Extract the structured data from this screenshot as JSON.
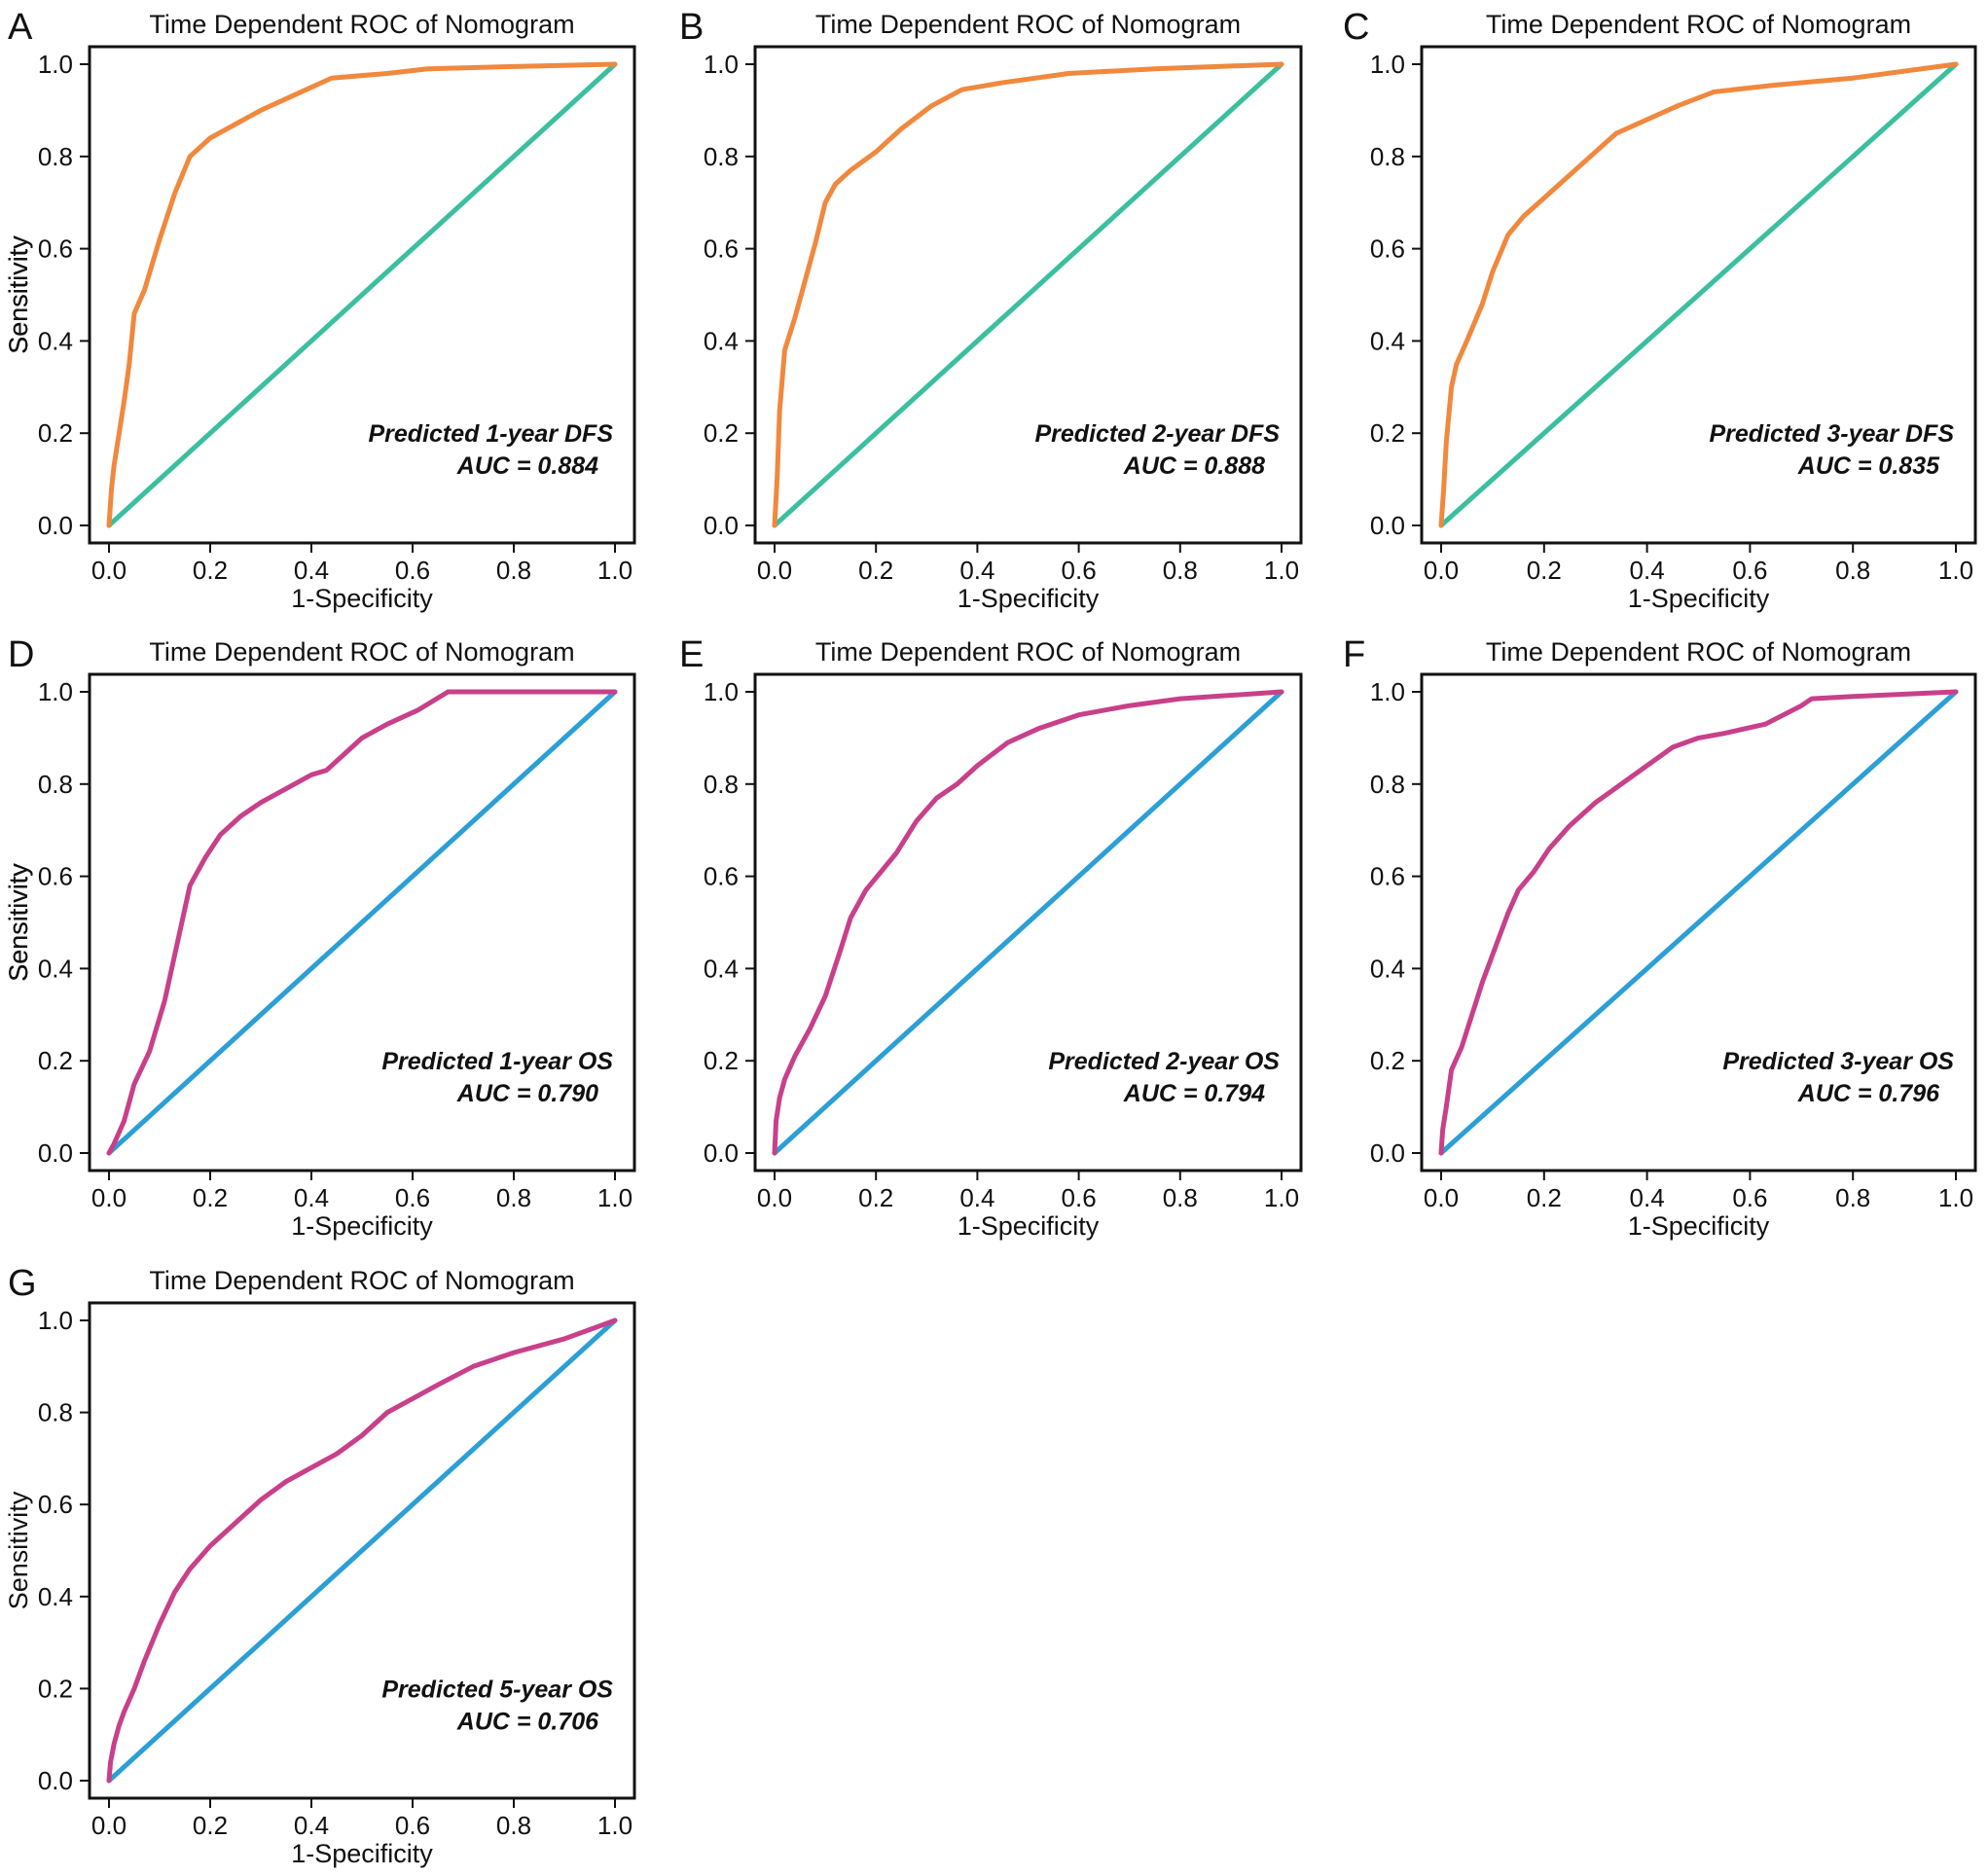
{
  "chart_data": [
    {
      "panel": "A",
      "type": "line",
      "title": "Time Dependent ROC of Nomogram",
      "xlabel": "1-Specificity",
      "ylabel": "Sensitivity",
      "xlim": [
        0,
        1
      ],
      "ylim": [
        0,
        1
      ],
      "xticks": [
        "0.0",
        "0.2",
        "0.4",
        "0.6",
        "0.8",
        "1.0"
      ],
      "yticks": [
        "0.0",
        "0.2",
        "0.4",
        "0.6",
        "0.8",
        "1.0"
      ],
      "annotation": [
        "Predicted 1-year DFS",
        "AUC = 0.884"
      ],
      "colors": {
        "roc": "#f0883e",
        "ref": "#3bbf9f"
      },
      "series": [
        {
          "x": [
            0,
            0.005,
            0.01,
            0.02,
            0.03,
            0.04,
            0.05,
            0.07,
            0.1,
            0.13,
            0.16,
            0.2,
            0.25,
            0.3,
            0.38,
            0.44,
            0.55,
            0.63,
            0.8,
            1.0
          ],
          "y": [
            0,
            0.08,
            0.13,
            0.2,
            0.27,
            0.35,
            0.46,
            0.51,
            0.62,
            0.72,
            0.8,
            0.84,
            0.87,
            0.9,
            0.94,
            0.97,
            0.98,
            0.99,
            0.995,
            1.0
          ]
        },
        {
          "x": [
            0,
            1
          ],
          "y": [
            0,
            1
          ]
        }
      ]
    },
    {
      "panel": "B",
      "type": "line",
      "title": "Time Dependent ROC of Nomogram",
      "xlabel": "1-Specificity",
      "ylabel": "Sensitivity",
      "xlim": [
        0,
        1
      ],
      "ylim": [
        0,
        1
      ],
      "xticks": [
        "0.0",
        "0.2",
        "0.4",
        "0.6",
        "0.8",
        "1.0"
      ],
      "yticks": [
        "0.0",
        "0.2",
        "0.4",
        "0.6",
        "0.8",
        "1.0"
      ],
      "annotation": [
        "Predicted 2-year DFS",
        "AUC = 0.888"
      ],
      "colors": {
        "roc": "#f0883e",
        "ref": "#3bbf9f"
      },
      "series": [
        {
          "x": [
            0,
            0.005,
            0.01,
            0.02,
            0.04,
            0.06,
            0.08,
            0.1,
            0.12,
            0.15,
            0.2,
            0.25,
            0.31,
            0.37,
            0.45,
            0.58,
            0.75,
            1.0
          ],
          "y": [
            0,
            0.1,
            0.25,
            0.38,
            0.45,
            0.53,
            0.61,
            0.7,
            0.74,
            0.77,
            0.81,
            0.86,
            0.91,
            0.945,
            0.96,
            0.98,
            0.99,
            1.0
          ]
        },
        {
          "x": [
            0,
            1
          ],
          "y": [
            0,
            1
          ]
        }
      ]
    },
    {
      "panel": "C",
      "type": "line",
      "title": "Time Dependent ROC of Nomogram",
      "xlabel": "1-Specificity",
      "ylabel": "Sensitivity",
      "xlim": [
        0,
        1
      ],
      "ylim": [
        0,
        1
      ],
      "xticks": [
        "0.0",
        "0.2",
        "0.4",
        "0.6",
        "0.8",
        "1.0"
      ],
      "yticks": [
        "0.0",
        "0.2",
        "0.4",
        "0.6",
        "0.8",
        "1.0"
      ],
      "annotation": [
        "Predicted 3-year DFS",
        "AUC = 0.835"
      ],
      "colors": {
        "roc": "#f0883e",
        "ref": "#3bbf9f"
      },
      "series": [
        {
          "x": [
            0,
            0.005,
            0.01,
            0.02,
            0.03,
            0.05,
            0.08,
            0.1,
            0.13,
            0.16,
            0.2,
            0.25,
            0.3,
            0.34,
            0.4,
            0.46,
            0.53,
            0.65,
            0.8,
            1.0
          ],
          "y": [
            0,
            0.08,
            0.18,
            0.3,
            0.35,
            0.4,
            0.48,
            0.55,
            0.63,
            0.67,
            0.71,
            0.76,
            0.81,
            0.85,
            0.88,
            0.91,
            0.94,
            0.955,
            0.97,
            1.0
          ]
        },
        {
          "x": [
            0,
            1
          ],
          "y": [
            0,
            1
          ]
        }
      ]
    },
    {
      "panel": "D",
      "type": "line",
      "title": "Time Dependent ROC of Nomogram",
      "xlabel": "1-Specificity",
      "ylabel": "Sensitivity",
      "xlim": [
        0,
        1
      ],
      "ylim": [
        0,
        1
      ],
      "xticks": [
        "0.0",
        "0.2",
        "0.4",
        "0.6",
        "0.8",
        "1.0"
      ],
      "yticks": [
        "0.0",
        "0.2",
        "0.4",
        "0.6",
        "0.8",
        "1.0"
      ],
      "annotation": [
        "Predicted 1-year OS",
        "AUC = 0.790"
      ],
      "colors": {
        "roc": "#c8408a",
        "ref": "#2b9fd6"
      },
      "series": [
        {
          "x": [
            0,
            0.01,
            0.03,
            0.05,
            0.08,
            0.11,
            0.14,
            0.16,
            0.19,
            0.22,
            0.26,
            0.3,
            0.35,
            0.4,
            0.43,
            0.47,
            0.5,
            0.55,
            0.61,
            0.67,
            0.7,
            0.8,
            1.0
          ],
          "y": [
            0,
            0.02,
            0.07,
            0.15,
            0.22,
            0.33,
            0.48,
            0.58,
            0.64,
            0.69,
            0.73,
            0.76,
            0.79,
            0.82,
            0.83,
            0.87,
            0.9,
            0.93,
            0.96,
            1.0,
            1.0,
            1.0,
            1.0
          ]
        },
        {
          "x": [
            0,
            1
          ],
          "y": [
            0,
            1
          ]
        }
      ]
    },
    {
      "panel": "E",
      "type": "line",
      "title": "Time Dependent ROC of Nomogram",
      "xlabel": "1-Specificity",
      "ylabel": "Sensitivity",
      "xlim": [
        0,
        1
      ],
      "ylim": [
        0,
        1
      ],
      "xticks": [
        "0.0",
        "0.2",
        "0.4",
        "0.6",
        "0.8",
        "1.0"
      ],
      "yticks": [
        "0.0",
        "0.2",
        "0.4",
        "0.6",
        "0.8",
        "1.0"
      ],
      "annotation": [
        "Predicted 2-year OS",
        "AUC = 0.794"
      ],
      "colors": {
        "roc": "#c8408a",
        "ref": "#2b9fd6"
      },
      "series": [
        {
          "x": [
            0,
            0.003,
            0.01,
            0.02,
            0.04,
            0.07,
            0.1,
            0.13,
            0.15,
            0.18,
            0.21,
            0.24,
            0.28,
            0.32,
            0.36,
            0.4,
            0.46,
            0.52,
            0.6,
            0.7,
            0.8,
            1.0
          ],
          "y": [
            0,
            0.07,
            0.12,
            0.16,
            0.21,
            0.27,
            0.34,
            0.44,
            0.51,
            0.57,
            0.61,
            0.65,
            0.72,
            0.77,
            0.8,
            0.84,
            0.89,
            0.92,
            0.95,
            0.97,
            0.985,
            1.0
          ]
        },
        {
          "x": [
            0,
            1
          ],
          "y": [
            0,
            1
          ]
        }
      ]
    },
    {
      "panel": "F",
      "type": "line",
      "title": "Time Dependent ROC of Nomogram",
      "xlabel": "1-Specificity",
      "ylabel": "Sensitivity",
      "xlim": [
        0,
        1
      ],
      "ylim": [
        0,
        1
      ],
      "xticks": [
        "0.0",
        "0.2",
        "0.4",
        "0.6",
        "0.8",
        "1.0"
      ],
      "yticks": [
        "0.0",
        "0.2",
        "0.4",
        "0.6",
        "0.8",
        "1.0"
      ],
      "annotation": [
        "Predicted 3-year OS",
        "AUC = 0.796"
      ],
      "colors": {
        "roc": "#c8408a",
        "ref": "#2b9fd6"
      },
      "series": [
        {
          "x": [
            0,
            0.003,
            0.01,
            0.02,
            0.04,
            0.06,
            0.08,
            0.1,
            0.13,
            0.15,
            0.18,
            0.21,
            0.25,
            0.3,
            0.35,
            0.4,
            0.45,
            0.5,
            0.55,
            0.63,
            0.7,
            0.72,
            0.8,
            1.0
          ],
          "y": [
            0,
            0.05,
            0.1,
            0.18,
            0.23,
            0.3,
            0.37,
            0.43,
            0.52,
            0.57,
            0.61,
            0.66,
            0.71,
            0.76,
            0.8,
            0.84,
            0.88,
            0.9,
            0.91,
            0.93,
            0.97,
            0.985,
            0.99,
            1.0
          ]
        },
        {
          "x": [
            0,
            1
          ],
          "y": [
            0,
            1
          ]
        }
      ]
    },
    {
      "panel": "G",
      "type": "line",
      "title": "Time Dependent ROC of Nomogram",
      "xlabel": "1-Specificity",
      "ylabel": "Sensitivity",
      "xlim": [
        0,
        1
      ],
      "ylim": [
        0,
        1
      ],
      "xticks": [
        "0.0",
        "0.2",
        "0.4",
        "0.6",
        "0.8",
        "1.0"
      ],
      "yticks": [
        "0.0",
        "0.2",
        "0.4",
        "0.6",
        "0.8",
        "1.0"
      ],
      "annotation": [
        "Predicted 5-year OS",
        "AUC = 0.706"
      ],
      "colors": {
        "roc": "#c8408a",
        "ref": "#2b9fd6"
      },
      "series": [
        {
          "x": [
            0,
            0.003,
            0.01,
            0.02,
            0.03,
            0.05,
            0.07,
            0.1,
            0.13,
            0.16,
            0.2,
            0.25,
            0.3,
            0.35,
            0.4,
            0.45,
            0.5,
            0.55,
            0.6,
            0.65,
            0.72,
            0.8,
            0.9,
            1.0
          ],
          "y": [
            0,
            0.04,
            0.08,
            0.12,
            0.15,
            0.2,
            0.26,
            0.34,
            0.41,
            0.46,
            0.51,
            0.56,
            0.61,
            0.65,
            0.68,
            0.71,
            0.75,
            0.8,
            0.83,
            0.86,
            0.9,
            0.93,
            0.96,
            1.0
          ]
        },
        {
          "x": [
            0,
            1
          ],
          "y": [
            0,
            1
          ]
        }
      ]
    }
  ]
}
